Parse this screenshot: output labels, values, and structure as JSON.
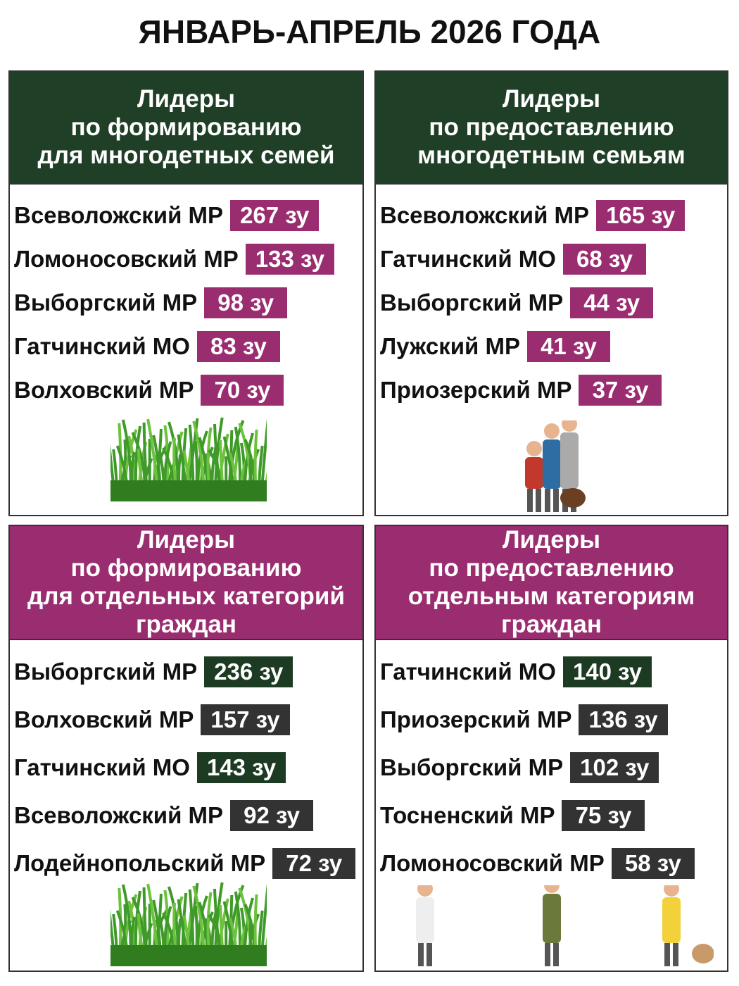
{
  "title": "ЯНВАРЬ-АПРЕЛЬ 2026 ГОДА",
  "panels": [
    {
      "header": [
        "Лидеры",
        "по формированию",
        "для многодетных семей"
      ],
      "header_color": "#1f3f26",
      "items": [
        {
          "name": "Всеволожский МР",
          "value": "267 зу",
          "color": "#9a2c70"
        },
        {
          "name": "Ломоносовский МР",
          "value": "133 зу",
          "color": "#9a2c70"
        },
        {
          "name": "Выборгский МР",
          "value": "98 зу",
          "color": "#9a2c70"
        },
        {
          "name": "Гатчинский МО",
          "value": "83 зу",
          "color": "#9a2c70"
        },
        {
          "name": "Волховский МР",
          "value": "70 зу",
          "color": "#9a2c70"
        }
      ]
    },
    {
      "header": [
        "Лидеры",
        "по предоставлению",
        "многодетным семьям"
      ],
      "header_color": "#1f3f26",
      "items": [
        {
          "name": "Всеволожский МР",
          "value": "165 зу",
          "color": "#9a2c70"
        },
        {
          "name": "Гатчинский МО",
          "value": "68 зу",
          "color": "#9a2c70"
        },
        {
          "name": "Выборгский МР",
          "value": "44 зу",
          "color": "#9a2c70"
        },
        {
          "name": "Лужский МР",
          "value": "41 зу",
          "color": "#9a2c70"
        },
        {
          "name": "Приозерский МР",
          "value": "37 зу",
          "color": "#9a2c70"
        }
      ]
    },
    {
      "header": [
        "Лидеры",
        "по формированию",
        "для отдельных категорий",
        "граждан"
      ],
      "header_color": "#9a2c70",
      "items": [
        {
          "name": "Выборгский МР",
          "value": "236 зу",
          "color": "#1c3b22"
        },
        {
          "name": "Волховский МР",
          "value": "157 зу",
          "color": "#333333"
        },
        {
          "name": "Гатчинский МО",
          "value": "143 зу",
          "color": "#1c3b22"
        },
        {
          "name": "Всеволожский МР",
          "value": "92 зу",
          "color": "#333333"
        },
        {
          "name": "Лодейнопольский МР",
          "value": "72 зу",
          "color": "#333333"
        }
      ]
    },
    {
      "header": [
        "Лидеры",
        "по предоставлению",
        "отдельным категориям",
        "граждан"
      ],
      "header_color": "#9a2c70",
      "items": [
        {
          "name": "Гатчинский МО",
          "value": "140 зу",
          "color": "#1c3b22"
        },
        {
          "name": "Приозерский МР",
          "value": "136 зу",
          "color": "#333333"
        },
        {
          "name": "Выборгский МР",
          "value": "102 зу",
          "color": "#333333"
        },
        {
          "name": "Тосненский МР",
          "value": "75 зу",
          "color": "#333333"
        },
        {
          "name": "Ломоносовский МР",
          "value": "58 зу",
          "color": "#333333"
        }
      ]
    }
  ]
}
